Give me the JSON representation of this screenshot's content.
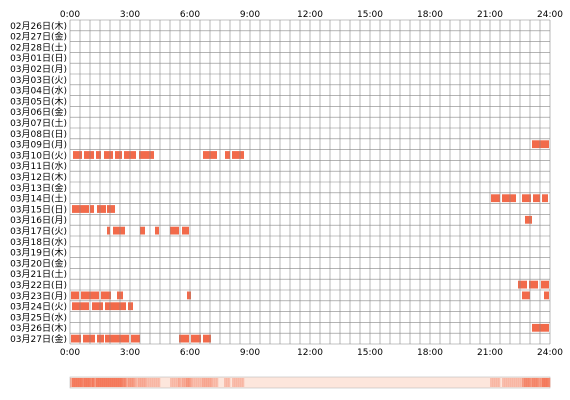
{
  "chart_data": {
    "type": "heatmap",
    "title": "",
    "xlabel": "",
    "ylabel": "",
    "xlim": [
      0,
      24
    ],
    "x_ticks": [
      "0:00",
      "3:00",
      "6:00",
      "9:00",
      "12:00",
      "15:00",
      "18:00",
      "21:00",
      "24:00"
    ],
    "grid": true,
    "cell_hours": 0.5,
    "colors": {
      "mark": "#f26a4a",
      "mark_light": "#f8b8a4",
      "grid": "#888888",
      "summary_base": "#fde6dc"
    },
    "rows": [
      {
        "label": "02月26日(木)",
        "spans": []
      },
      {
        "label": "02月27日(金)",
        "spans": []
      },
      {
        "label": "02月28日(土)",
        "spans": []
      },
      {
        "label": "03月01日(日)",
        "spans": []
      },
      {
        "label": "03月02日(月)",
        "spans": []
      },
      {
        "label": "03月03日(火)",
        "spans": []
      },
      {
        "label": "03月04日(水)",
        "spans": []
      },
      {
        "label": "03月05日(木)",
        "spans": []
      },
      {
        "label": "03月06日(金)",
        "spans": []
      },
      {
        "label": "03月07日(土)",
        "spans": []
      },
      {
        "label": "03月08日(日)",
        "spans": []
      },
      {
        "label": "03月09日(月)",
        "spans": [
          [
            23.1,
            23.95
          ]
        ]
      },
      {
        "label": "03月10日(火)",
        "spans": [
          [
            0.15,
            0.6
          ],
          [
            0.7,
            1.2
          ],
          [
            1.3,
            1.55
          ],
          [
            1.7,
            2.15
          ],
          [
            2.25,
            2.6
          ],
          [
            2.7,
            3.3
          ],
          [
            3.45,
            4.2
          ],
          [
            6.65,
            7.35
          ],
          [
            7.75,
            8.0
          ],
          [
            8.1,
            8.7
          ]
        ]
      },
      {
        "label": "03月11日(水)",
        "spans": []
      },
      {
        "label": "03月12日(木)",
        "spans": []
      },
      {
        "label": "03月13日(金)",
        "spans": []
      },
      {
        "label": "03月14日(土)",
        "spans": [
          [
            21.05,
            21.5
          ],
          [
            21.6,
            22.3
          ],
          [
            22.6,
            23.05
          ],
          [
            23.15,
            23.5
          ],
          [
            23.6,
            23.9
          ]
        ]
      },
      {
        "label": "03月15日(日)",
        "spans": [
          [
            0.1,
            0.95
          ],
          [
            1.0,
            1.2
          ],
          [
            1.35,
            1.8
          ],
          [
            1.85,
            2.25
          ]
        ]
      },
      {
        "label": "03月16日(月)",
        "spans": [
          [
            22.75,
            23.1
          ]
        ]
      },
      {
        "label": "03月17日(火)",
        "spans": [
          [
            1.85,
            2.0
          ],
          [
            2.15,
            2.75
          ],
          [
            3.5,
            3.75
          ],
          [
            4.25,
            4.45
          ],
          [
            5.0,
            5.45
          ],
          [
            5.6,
            5.95
          ]
        ]
      },
      {
        "label": "03月18日(水)",
        "spans": []
      },
      {
        "label": "03月19日(木)",
        "spans": []
      },
      {
        "label": "03月20日(金)",
        "spans": []
      },
      {
        "label": "03月21日(土)",
        "spans": []
      },
      {
        "label": "03月22日(日)",
        "spans": [
          [
            22.4,
            22.85
          ],
          [
            22.95,
            23.4
          ],
          [
            23.55,
            23.95
          ]
        ]
      },
      {
        "label": "03月23日(月)",
        "spans": [
          [
            0.05,
            0.45
          ],
          [
            0.55,
            1.45
          ],
          [
            1.55,
            2.05
          ],
          [
            2.35,
            2.65
          ],
          [
            5.85,
            6.05
          ],
          [
            22.6,
            23.0
          ],
          [
            23.7,
            23.95
          ]
        ]
      },
      {
        "label": "03月24日(火)",
        "spans": [
          [
            0.1,
            0.95
          ],
          [
            1.1,
            1.65
          ],
          [
            1.75,
            2.8
          ],
          [
            2.9,
            3.15
          ]
        ]
      },
      {
        "label": "03月25日(水)",
        "spans": []
      },
      {
        "label": "03月26日(木)",
        "spans": [
          [
            23.1,
            23.95
          ]
        ]
      },
      {
        "label": "03月27日(金)",
        "spans": [
          [
            0.05,
            0.55
          ],
          [
            0.65,
            1.25
          ],
          [
            1.35,
            1.7
          ],
          [
            1.75,
            2.95
          ],
          [
            3.05,
            3.5
          ],
          [
            5.45,
            5.95
          ],
          [
            6.05,
            6.55
          ],
          [
            6.65,
            7.05
          ]
        ]
      }
    ]
  }
}
